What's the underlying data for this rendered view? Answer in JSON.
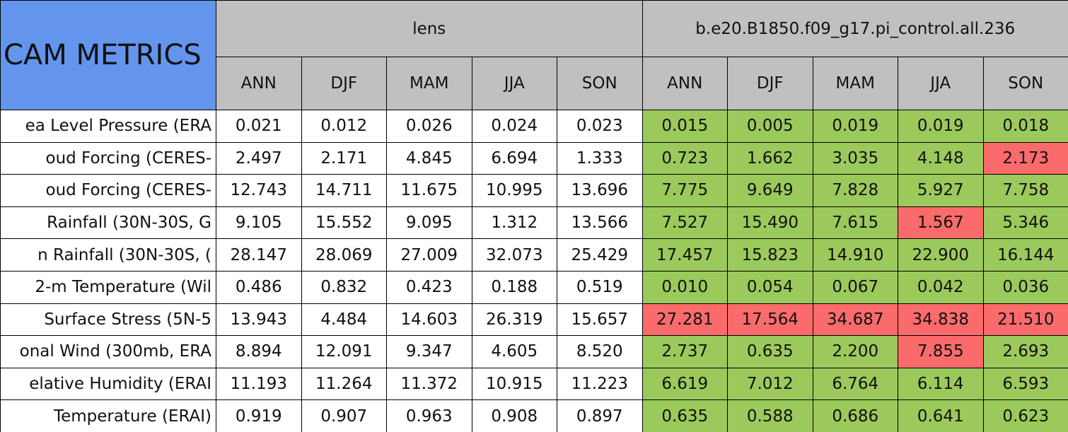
{
  "table": {
    "title": "CAM METRICS",
    "groups": [
      {
        "name": "lens",
        "seasons": [
          "ANN",
          "DJF",
          "MAM",
          "JJA",
          "SON"
        ]
      },
      {
        "name": "b.e20.B1850.f09_g17.pi_control.all.236",
        "seasons": [
          "ANN",
          "DJF",
          "MAM",
          "JJA",
          "SON"
        ]
      }
    ],
    "rows": [
      {
        "label": "ea Level Pressure (ERA",
        "values": [
          "0.021",
          "0.012",
          "0.026",
          "0.024",
          "0.023",
          "0.015",
          "0.005",
          "0.019",
          "0.019",
          "0.018"
        ],
        "colors": [
          "#ffffff",
          "#ffffff",
          "#ffffff",
          "#ffffff",
          "#ffffff",
          "#9cc95c",
          "#9cc95c",
          "#9cc95c",
          "#9cc95c",
          "#9cc95c"
        ]
      },
      {
        "label": "oud Forcing (CERES-",
        "values": [
          "2.497",
          "2.171",
          "4.845",
          "6.694",
          "1.333",
          "0.723",
          "1.662",
          "3.035",
          "4.148",
          "2.173"
        ],
        "colors": [
          "#ffffff",
          "#ffffff",
          "#ffffff",
          "#ffffff",
          "#ffffff",
          "#9cc95c",
          "#9cc95c",
          "#9cc95c",
          "#9cc95c",
          "#fb6b6b"
        ]
      },
      {
        "label": "oud Forcing (CERES-",
        "values": [
          "12.743",
          "14.711",
          "11.675",
          "10.995",
          "13.696",
          "7.775",
          "9.649",
          "7.828",
          "5.927",
          "7.758"
        ],
        "colors": [
          "#ffffff",
          "#ffffff",
          "#ffffff",
          "#ffffff",
          "#ffffff",
          "#9cc95c",
          "#9cc95c",
          "#9cc95c",
          "#9cc95c",
          "#9cc95c"
        ]
      },
      {
        "label": "Rainfall (30N-30S, G",
        "values": [
          "9.105",
          "15.552",
          "9.095",
          "1.312",
          "13.566",
          "7.527",
          "15.490",
          "7.615",
          "1.567",
          "5.346"
        ],
        "colors": [
          "#ffffff",
          "#ffffff",
          "#ffffff",
          "#ffffff",
          "#ffffff",
          "#9cc95c",
          "#9cc95c",
          "#9cc95c",
          "#fb6b6b",
          "#9cc95c"
        ]
      },
      {
        "label": "n Rainfall (30N-30S, (",
        "values": [
          "28.147",
          "28.069",
          "27.009",
          "32.073",
          "25.429",
          "17.457",
          "15.823",
          "14.910",
          "22.900",
          "16.144"
        ],
        "colors": [
          "#ffffff",
          "#ffffff",
          "#ffffff",
          "#ffffff",
          "#ffffff",
          "#9cc95c",
          "#9cc95c",
          "#9cc95c",
          "#9cc95c",
          "#9cc95c"
        ]
      },
      {
        "label": "2-m Temperature (Wil",
        "values": [
          "0.486",
          "0.832",
          "0.423",
          "0.188",
          "0.519",
          "0.010",
          "0.054",
          "0.067",
          "0.042",
          "0.036"
        ],
        "colors": [
          "#ffffff",
          "#ffffff",
          "#ffffff",
          "#ffffff",
          "#ffffff",
          "#9cc95c",
          "#9cc95c",
          "#9cc95c",
          "#9cc95c",
          "#9cc95c"
        ]
      },
      {
        "label": "Surface Stress (5N-5",
        "values": [
          "13.943",
          "4.484",
          "14.603",
          "26.319",
          "15.657",
          "27.281",
          "17.564",
          "34.687",
          "34.838",
          "21.510"
        ],
        "colors": [
          "#ffffff",
          "#ffffff",
          "#ffffff",
          "#ffffff",
          "#ffffff",
          "#fb6b6b",
          "#fb6b6b",
          "#fb6b6b",
          "#fb6b6b",
          "#fb6b6b"
        ]
      },
      {
        "label": "onal Wind (300mb, ERA",
        "values": [
          "8.894",
          "12.091",
          "9.347",
          "4.605",
          "8.520",
          "2.737",
          "0.635",
          "2.200",
          "7.855",
          "2.693"
        ],
        "colors": [
          "#ffffff",
          "#ffffff",
          "#ffffff",
          "#ffffff",
          "#ffffff",
          "#9cc95c",
          "#9cc95c",
          "#9cc95c",
          "#fb6b6b",
          "#9cc95c"
        ]
      },
      {
        "label": "elative Humidity (ERAI",
        "values": [
          "11.193",
          "11.264",
          "11.372",
          "10.915",
          "11.223",
          "6.619",
          "7.012",
          "6.764",
          "6.114",
          "6.593"
        ],
        "colors": [
          "#ffffff",
          "#ffffff",
          "#ffffff",
          "#ffffff",
          "#ffffff",
          "#9cc95c",
          "#9cc95c",
          "#9cc95c",
          "#9cc95c",
          "#9cc95c"
        ]
      },
      {
        "label": "Temperature (ERAI)",
        "values": [
          "0.919",
          "0.907",
          "0.963",
          "0.908",
          "0.897",
          "0.635",
          "0.588",
          "0.686",
          "0.641",
          "0.623"
        ],
        "colors": [
          "#ffffff",
          "#ffffff",
          "#ffffff",
          "#ffffff",
          "#ffffff",
          "#9cc95c",
          "#9cc95c",
          "#9cc95c",
          "#9cc95c",
          "#9cc95c"
        ]
      }
    ]
  }
}
